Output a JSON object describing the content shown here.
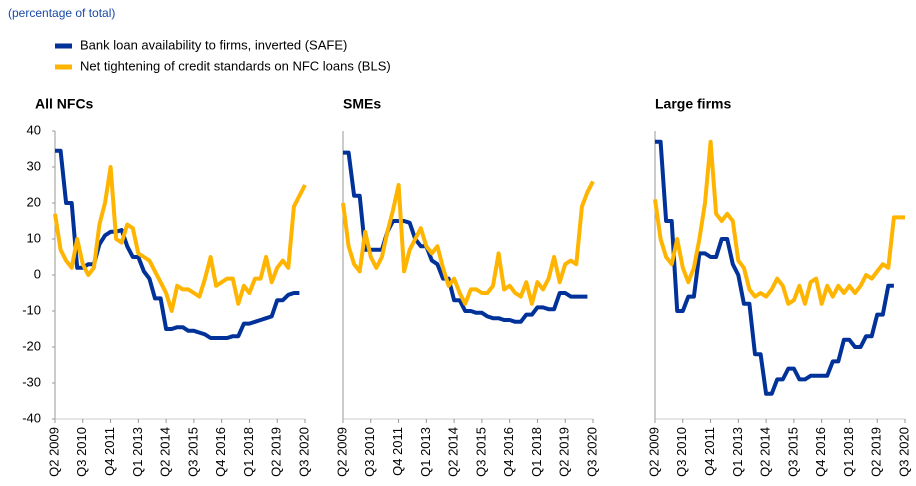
{
  "subtitle": "(percentage of total)",
  "chart_data": [
    {
      "type": "line",
      "title": "All NFCs",
      "categories": [
        "Q2 2009",
        null,
        null,
        null,
        null,
        "Q3 2010",
        null,
        null,
        null,
        null,
        "Q4 2011",
        null,
        null,
        null,
        null,
        "Q1 2013",
        null,
        null,
        null,
        null,
        "Q2 2014",
        null,
        null,
        null,
        null,
        "Q3 2015",
        null,
        null,
        null,
        null,
        "Q4 2016",
        null,
        null,
        null,
        null,
        "Q1 2018",
        null,
        null,
        null,
        null,
        "Q2 2019",
        null,
        null,
        null,
        null,
        "Q3 2020"
      ],
      "ylim": [
        -40,
        40
      ],
      "yticks": [
        -40,
        -30,
        -20,
        -10,
        0,
        10,
        20,
        30,
        40
      ],
      "series": [
        {
          "name": "Bank loan availability to firms, inverted (SAFE)",
          "color": "#003299",
          "values": [
            34.5,
            34.5,
            20,
            20,
            2,
            2,
            3,
            3,
            8.5,
            11,
            12,
            12,
            12.5,
            8,
            5,
            5,
            1,
            -1,
            -6.5,
            -6.5,
            -15,
            -15,
            -14.5,
            -14.5,
            -15.5,
            -15.5,
            -16,
            -16.5,
            -17.5,
            -17.5,
            -17.5,
            -17.5,
            -17,
            -17,
            -13.5,
            -13.5,
            -13,
            -12.5,
            -12,
            -11.5,
            -7,
            -7,
            -5.5,
            -5,
            -5,
            null
          ]
        },
        {
          "name": "Net tightening of credit standards on NFC loans (BLS)",
          "color": "#ffb400",
          "values": [
            17,
            7,
            4,
            2,
            10,
            3,
            0,
            2,
            14,
            20,
            30,
            10,
            9,
            14,
            13,
            6,
            5,
            4,
            1,
            -2,
            -5,
            -10,
            -3,
            -4,
            -4,
            -5,
            -6,
            -1,
            5,
            -3,
            -2,
            -1,
            -1,
            -8,
            -3,
            -5,
            -1,
            -1,
            5,
            -2,
            2,
            4,
            2,
            19,
            22,
            25
          ]
        }
      ]
    },
    {
      "type": "line",
      "title": "SMEs",
      "categories": [
        "Q2 2009",
        null,
        null,
        null,
        null,
        "Q3 2010",
        null,
        null,
        null,
        null,
        "Q4 2011",
        null,
        null,
        null,
        null,
        "Q1 2013",
        null,
        null,
        null,
        null,
        "Q2 2014",
        null,
        null,
        null,
        null,
        "Q3 2015",
        null,
        null,
        null,
        null,
        "Q4 2016",
        null,
        null,
        null,
        null,
        "Q1 2018",
        null,
        null,
        null,
        null,
        "Q2 2019",
        null,
        null,
        null,
        null,
        "Q3 2020"
      ],
      "ylim": [
        -40,
        40
      ],
      "series": [
        {
          "color": "#003299",
          "values": [
            34,
            34,
            22,
            22,
            7,
            7,
            7,
            7,
            12,
            15,
            15,
            15,
            14.5,
            10,
            8,
            8,
            4,
            3,
            -1,
            -1,
            -7,
            -7,
            -10,
            -10,
            -10.5,
            -10.5,
            -11.5,
            -12,
            -12,
            -12.5,
            -12.5,
            -13,
            -13,
            -11,
            -11,
            -9,
            -9,
            -9.5,
            -9.5,
            -5,
            -5,
            -6,
            -6,
            -6,
            -6,
            null
          ]
        },
        {
          "color": "#ffb400",
          "values": [
            20,
            8,
            3,
            1,
            12,
            5,
            2,
            5,
            12,
            18,
            25,
            1,
            7,
            10,
            13,
            8,
            6,
            8,
            2,
            -3,
            -1,
            -5,
            -8,
            -4,
            -4,
            -5,
            -5,
            -3,
            6,
            -4,
            -3,
            -5,
            -6,
            -2,
            -8,
            -2,
            -4,
            -1,
            5,
            -2,
            3,
            4,
            3,
            19,
            23,
            26
          ]
        }
      ]
    },
    {
      "type": "line",
      "title": "Large firms",
      "categories": [
        "Q2 2009",
        null,
        null,
        null,
        null,
        "Q3 2010",
        null,
        null,
        null,
        null,
        "Q4 2011",
        null,
        null,
        null,
        null,
        "Q1 2013",
        null,
        null,
        null,
        null,
        "Q2 2014",
        null,
        null,
        null,
        null,
        "Q3 2015",
        null,
        null,
        null,
        null,
        "Q4 2016",
        null,
        null,
        null,
        null,
        "Q1 2018",
        null,
        null,
        null,
        null,
        "Q2 2019",
        null,
        null,
        null,
        null,
        "Q3 2020"
      ],
      "ylim": [
        -40,
        40
      ],
      "series": [
        {
          "color": "#003299",
          "values": [
            37,
            37,
            15,
            15,
            -10,
            -10,
            -6,
            -6,
            6,
            6,
            5,
            5,
            10,
            10,
            3,
            0,
            -8,
            -8,
            -22,
            -22,
            -33,
            -33,
            -29,
            -29,
            -26,
            -26,
            -29,
            -29,
            -28,
            -28,
            -28,
            -28,
            -24,
            -24,
            -18,
            -18,
            -20,
            -20,
            -17,
            -17,
            -11,
            -11,
            -3,
            -3,
            null,
            null
          ]
        },
        {
          "color": "#ffb400",
          "values": [
            21,
            10,
            5,
            3,
            10,
            2,
            -2,
            2,
            10,
            20,
            37,
            17,
            15,
            17,
            15,
            4,
            2,
            -4,
            -6,
            -5,
            -6,
            -4,
            -1,
            -3,
            -8,
            -7,
            -3,
            -8,
            -2,
            -1,
            -8,
            -3,
            -6,
            -3,
            -5,
            -3,
            -5,
            -3,
            0,
            -1,
            1,
            3,
            2,
            16,
            16,
            16
          ]
        }
      ]
    }
  ]
}
